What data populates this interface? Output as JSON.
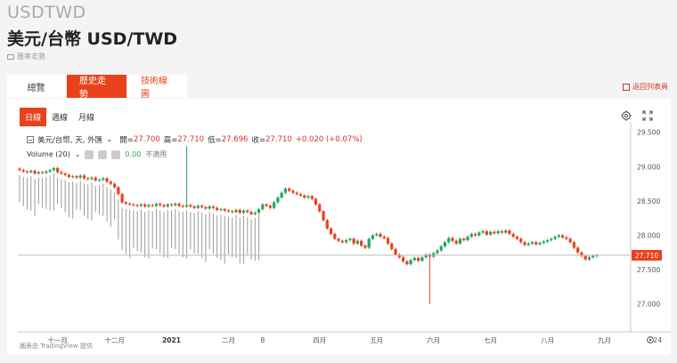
{
  "header": {
    "ticker": "USDTWD",
    "title": "美元/台幣 USD/TWD",
    "source_note": "匯率走勢"
  },
  "tabs": [
    {
      "label": "總覽",
      "active": false
    },
    {
      "label": "歷史走勢",
      "active": true
    },
    {
      "label": "技術線圖",
      "active": false
    }
  ],
  "back_link": "返回列表頁",
  "period_tabs": [
    {
      "label": "日線",
      "active": true
    },
    {
      "label": "週線",
      "active": false
    },
    {
      "label": "月線",
      "active": false
    }
  ],
  "legend": {
    "symbol": "美元/台幣, 天, 外匯",
    "open_label": "開=",
    "open": "27.700",
    "high_label": "高=",
    "high": "27.710",
    "low_label": "低=",
    "low": "27.696",
    "close_label": "收=",
    "close": "27.710",
    "change": "+0.020 (+0.07%)"
  },
  "volume_legend": {
    "label": "Volume (20)",
    "value": "0.00",
    "na": "不適用"
  },
  "attribution": "圖表由 TradingView 提供",
  "colors": {
    "accent": "#e8421c",
    "up": "#26a65b",
    "down": "#e8421c",
    "price_badge": "#e8421c"
  },
  "icons": {
    "settings": "gear-icon",
    "fullscreen": "fullscreen-icon",
    "axis_settings": "gear-icon"
  },
  "chart_data": {
    "type": "candlestick",
    "y_ticks": [
      "29.500",
      "29.000",
      "28.500",
      "28.000",
      "27.500",
      "27.000"
    ],
    "y_tick_values": [
      29.5,
      29.0,
      28.5,
      28.0,
      27.5,
      27.0
    ],
    "ylim": [
      26.75,
      29.6
    ],
    "x_ticks": [
      "十一月",
      "十二月",
      "2021",
      "二月",
      "8",
      "四月",
      "五月",
      "六月",
      "七月",
      "八月",
      "九月",
      "24"
    ],
    "x_tick_index": [
      10,
      25,
      40,
      55,
      64,
      79,
      94,
      109,
      124,
      139,
      154,
      168
    ],
    "current_price": "27.710",
    "current_value": 27.71,
    "closes": [
      28.95,
      28.93,
      28.92,
      28.94,
      28.9,
      28.92,
      28.91,
      28.93,
      28.95,
      28.98,
      28.92,
      28.9,
      28.88,
      28.85,
      28.86,
      28.84,
      28.87,
      28.83,
      28.82,
      28.84,
      28.8,
      28.81,
      28.83,
      28.78,
      28.75,
      28.7,
      28.6,
      28.48,
      28.46,
      28.45,
      28.44,
      28.43,
      28.45,
      28.42,
      28.44,
      28.43,
      28.46,
      28.44,
      28.42,
      28.45,
      28.44,
      28.46,
      28.43,
      28.42,
      28.44,
      28.42,
      28.4,
      28.43,
      28.41,
      28.39,
      28.42,
      28.4,
      28.37,
      28.38,
      28.36,
      28.35,
      28.34,
      28.37,
      28.33,
      28.36,
      28.34,
      28.31,
      28.33,
      28.38,
      28.45,
      28.43,
      28.4,
      28.48,
      28.55,
      28.62,
      28.68,
      28.65,
      28.62,
      28.6,
      28.58,
      28.55,
      28.57,
      28.53,
      28.45,
      28.35,
      28.22,
      28.1,
      28.02,
      27.95,
      27.92,
      27.9,
      27.93,
      27.95,
      27.88,
      27.92,
      27.85,
      27.82,
      27.95,
      28.0,
      28.02,
      27.98,
      27.96,
      27.88,
      27.8,
      27.72,
      27.68,
      27.62,
      27.58,
      27.64,
      27.67,
      27.63,
      27.68,
      27.72,
      27.69,
      27.74,
      27.78,
      27.84,
      27.9,
      27.96,
      27.92,
      27.88,
      27.95,
      27.93,
      27.98,
      28.02,
      28.0,
      28.04,
      28.06,
      28.01,
      28.05,
      28.03,
      28.06,
      28.04,
      28.07,
      28.02,
      27.98,
      27.95,
      27.9,
      27.86,
      27.88,
      27.9,
      27.87,
      27.89,
      27.91,
      27.93,
      27.95,
      27.98,
      28.0,
      27.97,
      27.95,
      27.9,
      27.82,
      27.75,
      27.7,
      27.65,
      27.68,
      27.7,
      27.71
    ],
    "spike": {
      "index": 108,
      "low": 27.0
    },
    "high_spike": {
      "index": 44,
      "high": 29.3
    }
  }
}
